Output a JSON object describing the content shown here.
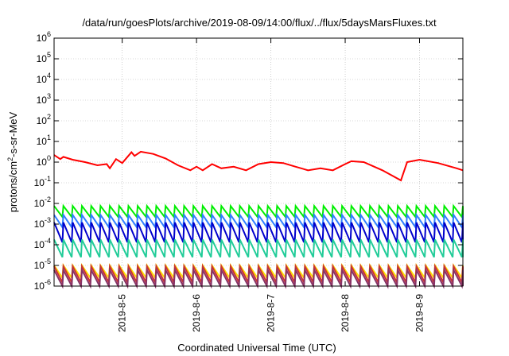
{
  "chart_data": {
    "type": "line",
    "title": "/data/run/goesPlots/archive/2019-08-09/14:00/flux/../flux/5daysMarsFluxes.txt",
    "xlabel": "Coordinated Universal Time (UTC)",
    "ylabel": "protons/cm2-s-sr-MeV",
    "ylabel_parts": {
      "pre": "protons/cm",
      "sup": "2",
      "post": "-s-sr-MeV"
    },
    "y_scale": "log",
    "ylim": [
      1e-06,
      1000000.0
    ],
    "y_ticks": [
      {
        "exp": "-6",
        "label_base": "10"
      },
      {
        "exp": "-5",
        "label_base": "10"
      },
      {
        "exp": "-4",
        "label_base": "10"
      },
      {
        "exp": "-3",
        "label_base": "10"
      },
      {
        "exp": "-2",
        "label_base": "10"
      },
      {
        "exp": "-1",
        "label_base": "10"
      },
      {
        "exp": "0",
        "label_base": "10"
      },
      {
        "exp": "1",
        "label_base": "10"
      },
      {
        "exp": "2",
        "label_base": "10"
      },
      {
        "exp": "3",
        "label_base": "10"
      },
      {
        "exp": "4",
        "label_base": "10"
      },
      {
        "exp": "5",
        "label_base": "10"
      },
      {
        "exp": "6",
        "label_base": "10"
      }
    ],
    "x_range_days": [
      "2019-08-04 02:00",
      "2019-08-09 14:00"
    ],
    "x_ticks": [
      "2019-8-5",
      "2019-8-6",
      "2019-8-7",
      "2019-8-8",
      "2019-8-9"
    ],
    "grid": true,
    "legend": "none",
    "series": [
      {
        "color": "#ff0000",
        "values": [
          {
            "x": "2019-08-04 02:00",
            "y": 2.2
          },
          {
            "x": "2019-08-04 04:00",
            "y": 1.4
          },
          {
            "x": "2019-08-04 05:00",
            "y": 1.8
          },
          {
            "x": "2019-08-04 08:00",
            "y": 1.3
          },
          {
            "x": "2019-08-04 12:00",
            "y": 1.0
          },
          {
            "x": "2019-08-04 16:00",
            "y": 0.7
          },
          {
            "x": "2019-08-04 19:00",
            "y": 0.8
          },
          {
            "x": "2019-08-04 20:00",
            "y": 0.5
          },
          {
            "x": "2019-08-04 22:00",
            "y": 1.4
          },
          {
            "x": "2019-08-05 00:00",
            "y": 0.9
          },
          {
            "x": "2019-08-05 03:00",
            "y": 3.0
          },
          {
            "x": "2019-08-05 04:00",
            "y": 2.0
          },
          {
            "x": "2019-08-05 06:00",
            "y": 3.2
          },
          {
            "x": "2019-08-05 10:00",
            "y": 2.5
          },
          {
            "x": "2019-08-05 14:00",
            "y": 1.5
          },
          {
            "x": "2019-08-05 18:00",
            "y": 0.7
          },
          {
            "x": "2019-08-05 22:00",
            "y": 0.4
          },
          {
            "x": "2019-08-06 00:00",
            "y": 0.6
          },
          {
            "x": "2019-08-06 02:00",
            "y": 0.4
          },
          {
            "x": "2019-08-06 05:00",
            "y": 0.8
          },
          {
            "x": "2019-08-06 08:00",
            "y": 0.5
          },
          {
            "x": "2019-08-06 12:00",
            "y": 0.6
          },
          {
            "x": "2019-08-06 16:00",
            "y": 0.4
          },
          {
            "x": "2019-08-06 20:00",
            "y": 0.8
          },
          {
            "x": "2019-08-07 00:00",
            "y": 1.0
          },
          {
            "x": "2019-08-07 04:00",
            "y": 0.9
          },
          {
            "x": "2019-08-07 08:00",
            "y": 0.6
          },
          {
            "x": "2019-08-07 12:00",
            "y": 0.4
          },
          {
            "x": "2019-08-07 16:00",
            "y": 0.5
          },
          {
            "x": "2019-08-07 20:00",
            "y": 0.4
          },
          {
            "x": "2019-08-08 00:00",
            "y": 0.8
          },
          {
            "x": "2019-08-08 02:00",
            "y": 1.1
          },
          {
            "x": "2019-08-08 06:00",
            "y": 1.0
          },
          {
            "x": "2019-08-08 12:00",
            "y": 0.4
          },
          {
            "x": "2019-08-08 18:00",
            "y": 0.13
          },
          {
            "x": "2019-08-08 20:00",
            "y": 1.0
          },
          {
            "x": "2019-08-09 00:00",
            "y": 1.3
          },
          {
            "x": "2019-08-09 06:00",
            "y": 0.9
          },
          {
            "x": "2019-08-09 12:00",
            "y": 0.5
          },
          {
            "x": "2019-08-09 14:00",
            "y": 0.4
          }
        ]
      },
      {
        "color": "#00ee00",
        "high": 0.0075,
        "low": 0.0022,
        "period_hours": 3
      },
      {
        "color": "#2f7fff",
        "high": 0.0028,
        "low": 0.0007,
        "period_hours": 3
      },
      {
        "color": "#0000cc",
        "high": 0.0012,
        "low": 0.00013,
        "period_hours": 3
      },
      {
        "color": "#22cc99",
        "high": 0.00018,
        "low": 2.5e-05,
        "period_hours": 3
      },
      {
        "color": "#ffdd00",
        "high": 1e-05,
        "low": 2.5e-06,
        "period_hours": 3
      },
      {
        "color": "#cc3333",
        "high": 9e-06,
        "low": 1.5e-06,
        "period_hours": 3
      },
      {
        "color": "#883366",
        "high": 6e-06,
        "low": 1e-06,
        "period_hours": 3
      }
    ]
  }
}
